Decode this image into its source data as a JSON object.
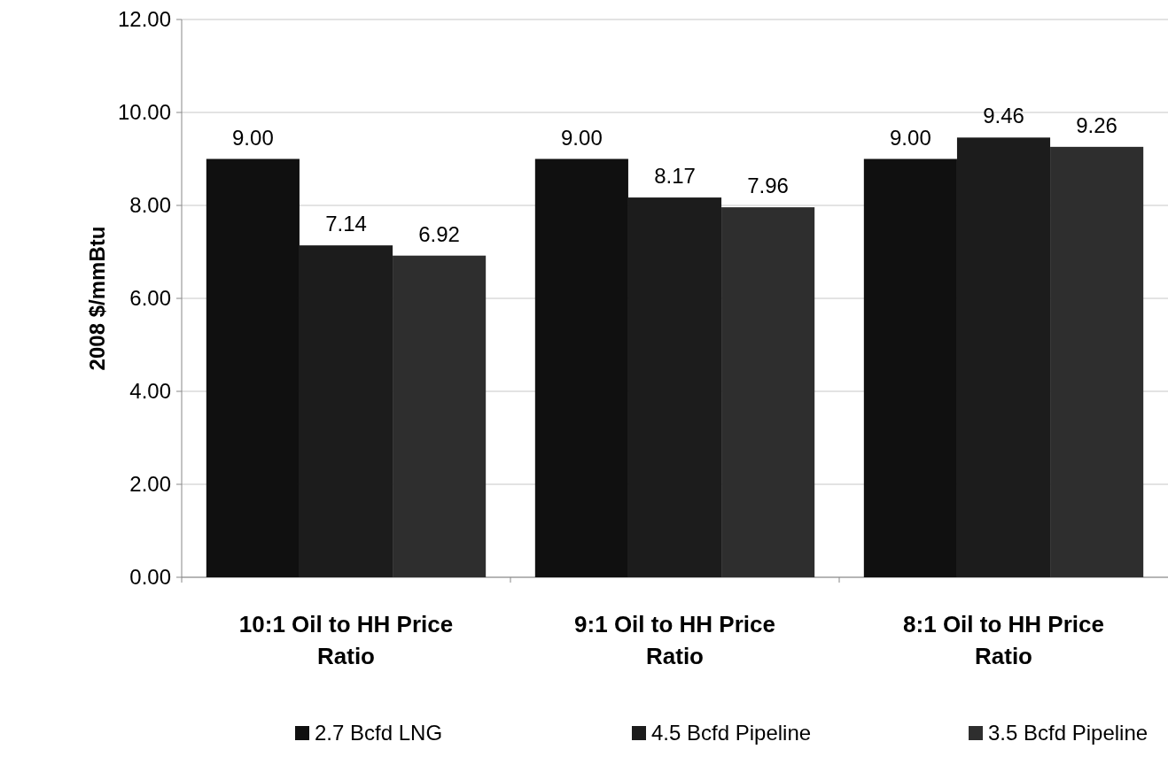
{
  "chart_data": {
    "type": "bar",
    "ylabel": "2008 $/mmBtu",
    "categories": [
      "10:1 Oil to HH Price Ratio",
      "9:1 Oil to HH Price Ratio",
      "8:1 Oil to HH Price Ratio"
    ],
    "series": [
      {
        "name": "2.7 Bcfd LNG",
        "color": "#101010",
        "values": [
          9.0,
          9.0,
          9.0
        ],
        "value_labels": [
          "9.00",
          "9.00",
          "9.00"
        ]
      },
      {
        "name": "4.5 Bcfd Pipeline",
        "color": "#1c1c1c",
        "values": [
          7.14,
          8.17,
          9.46
        ],
        "value_labels": [
          "7.14",
          "8.17",
          "9.46"
        ]
      },
      {
        "name": "3.5 Bcfd Pipeline",
        "color": "#2e2e2e",
        "values": [
          6.92,
          7.96,
          9.26
        ],
        "value_labels": [
          "6.92",
          "7.96",
          "9.26"
        ]
      }
    ],
    "ylim": [
      0,
      12
    ],
    "yticks": [
      {
        "value": 0,
        "label": "0.00"
      },
      {
        "value": 2,
        "label": "2.00"
      },
      {
        "value": 4,
        "label": "4.00"
      },
      {
        "value": 6,
        "label": "6.00"
      },
      {
        "value": 8,
        "label": "8.00"
      },
      {
        "value": 10,
        "label": "10.00"
      },
      {
        "value": 12,
        "label": "12.00"
      }
    ],
    "grid": "y",
    "legend": "bottom"
  }
}
